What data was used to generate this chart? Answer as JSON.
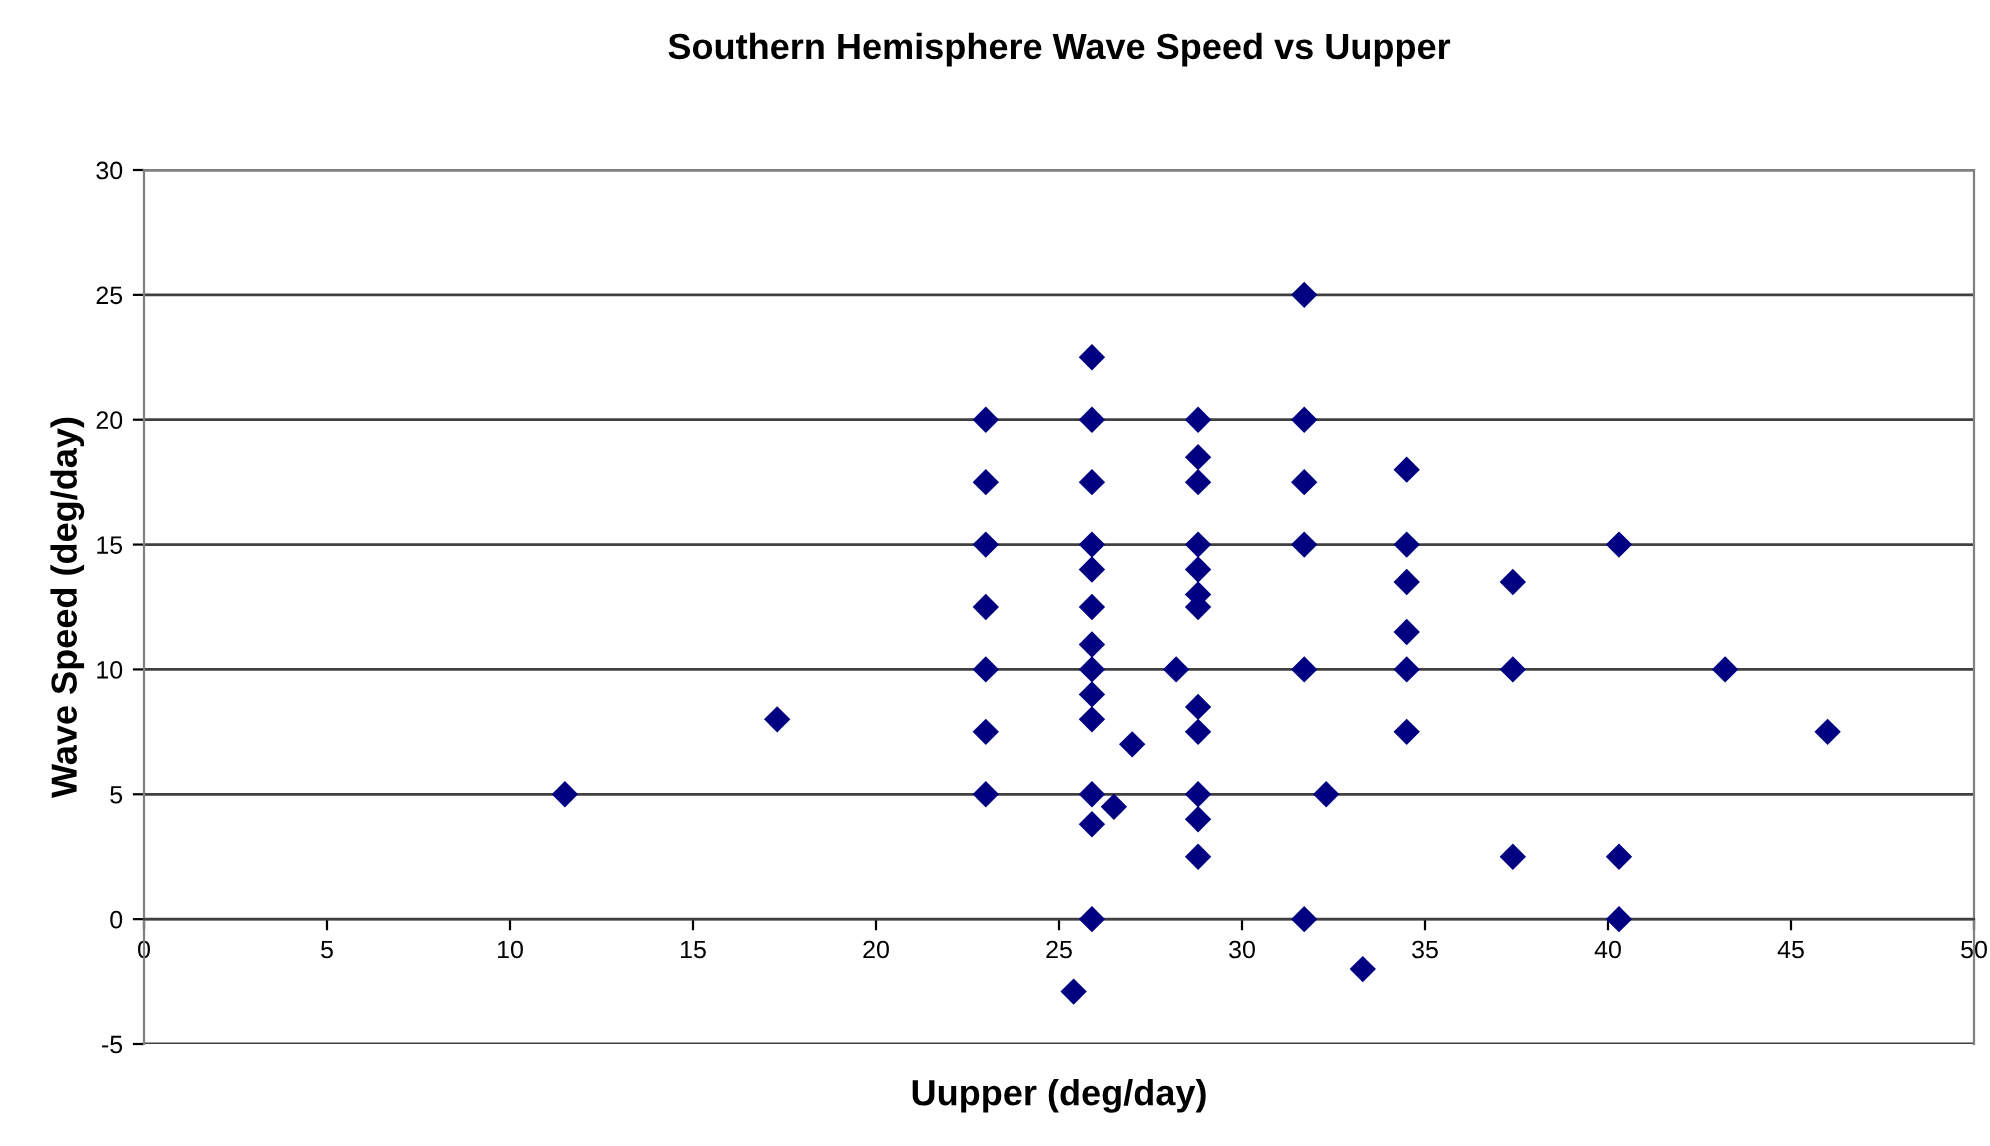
{
  "chart_data": {
    "type": "scatter",
    "title": "Southern Hemisphere Wave Speed vs Uupper",
    "xlabel": "Uupper (deg/day)",
    "ylabel": "Wave Speed (deg/day)",
    "series": [
      {
        "color": "#000080",
        "x": [
          11.5,
          17.3,
          23.0,
          23.0,
          23.0,
          23.0,
          23.0,
          23.0,
          23.0,
          25.9,
          25.9,
          25.9,
          25.9,
          25.9,
          25.9,
          25.9,
          25.9,
          25.9,
          25.9,
          25.9,
          25.9,
          25.9,
          25.4,
          26.5,
          27.0,
          28.2,
          28.8,
          28.8,
          28.8,
          28.8,
          28.8,
          28.8,
          28.8,
          28.8,
          28.8,
          28.8,
          28.8,
          28.8,
          31.7,
          31.7,
          31.7,
          31.7,
          31.7,
          31.7,
          32.3,
          33.3,
          34.5,
          34.5,
          34.5,
          34.5,
          34.5,
          34.5,
          37.4,
          37.4,
          37.4,
          40.3,
          40.3,
          40.3,
          43.2,
          46.0
        ],
        "values": [
          5,
          8,
          20,
          17.5,
          15,
          12.5,
          10,
          7.5,
          5,
          22.5,
          20,
          17.5,
          15,
          14,
          12.5,
          11,
          10,
          9,
          8,
          5,
          3.8,
          0,
          -2.9,
          4.5,
          7,
          10,
          20,
          18.5,
          17.5,
          15,
          14,
          13,
          12.5,
          8.5,
          7.5,
          5,
          4,
          2.5,
          25,
          20,
          17.5,
          15,
          10,
          0,
          5,
          -2,
          18,
          15,
          13.5,
          11.5,
          10,
          7.5,
          13.5,
          10,
          2.5,
          15,
          2.5,
          0,
          10,
          7.5
        ]
      }
    ],
    "xlim": [
      0,
      50
    ],
    "xticks": [
      0,
      5,
      10,
      15,
      20,
      25,
      30,
      35,
      40,
      45,
      50
    ],
    "ylim": [
      -5,
      30
    ],
    "yticks": [
      -5,
      0,
      5,
      10,
      15,
      20,
      25,
      30
    ],
    "grid": "y",
    "marker": "diamond",
    "legend": false
  }
}
